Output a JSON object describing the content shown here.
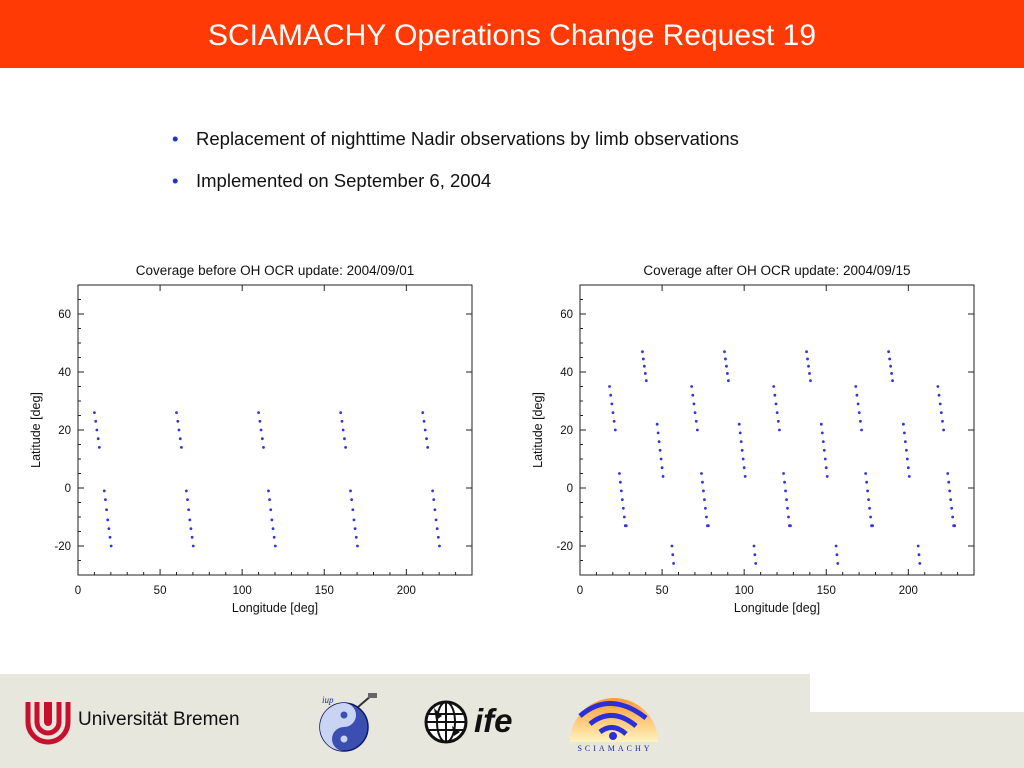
{
  "header": {
    "title": "SCIAMACHY Operations Change Request 19"
  },
  "bullets": [
    "Replacement of nighttime Nadir observations by limb observations",
    "Implemented on September 6, 2004"
  ],
  "bullet_glyph": "•",
  "footer": {
    "university": "Universität Bremen",
    "ife_logo_text": "ife",
    "sciamachy_logo_text": "SCIAMACHY"
  },
  "colors": {
    "header_bg": "#ff3a05",
    "footer_bg": "#e7e7dd",
    "points": "#3333dd"
  },
  "chart_data": [
    {
      "type": "scatter",
      "title": "Coverage before OH OCR update: 2004/09/01",
      "xlabel": "Longitude [deg]",
      "ylabel": "Latitude [deg]",
      "xlim": [
        0,
        240
      ],
      "ylim": [
        -30,
        70
      ],
      "xticks": [
        0,
        50,
        100,
        150,
        200
      ],
      "yticks": [
        -20,
        0,
        20,
        40,
        60
      ],
      "grid": false,
      "series": [
        {
          "x": [
            10,
            10.8,
            11.5,
            12.3,
            13
          ],
          "y": [
            26,
            23,
            20,
            17,
            14
          ]
        },
        {
          "x": [
            16,
            16.7,
            17.4,
            18.1,
            18.8,
            19.5,
            20.2
          ],
          "y": [
            -1,
            -4,
            -7.5,
            -11,
            -14,
            -17,
            -20
          ]
        },
        {
          "x": [
            60,
            60.8,
            61.5,
            62.3,
            63
          ],
          "y": [
            26,
            23,
            20,
            17,
            14
          ]
        },
        {
          "x": [
            66,
            66.7,
            67.4,
            68.1,
            68.8,
            69.5,
            70.2
          ],
          "y": [
            -1,
            -4,
            -7.5,
            -11,
            -14,
            -17,
            -20
          ]
        },
        {
          "x": [
            110,
            110.8,
            111.5,
            112.3,
            113
          ],
          "y": [
            26,
            23,
            20,
            17,
            14
          ]
        },
        {
          "x": [
            116,
            116.7,
            117.4,
            118.1,
            118.8,
            119.5,
            120.2
          ],
          "y": [
            -1,
            -4,
            -7.5,
            -11,
            -14,
            -17,
            -20
          ]
        },
        {
          "x": [
            160,
            160.8,
            161.5,
            162.3,
            163
          ],
          "y": [
            26,
            23,
            20,
            17,
            14
          ]
        },
        {
          "x": [
            166,
            166.7,
            167.4,
            168.1,
            168.8,
            169.5,
            170.2
          ],
          "y": [
            -1,
            -4,
            -7.5,
            -11,
            -14,
            -17,
            -20
          ]
        },
        {
          "x": [
            210,
            210.8,
            211.5,
            212.3,
            213
          ],
          "y": [
            26,
            23,
            20,
            17,
            14
          ]
        },
        {
          "x": [
            216,
            216.7,
            217.4,
            218.1,
            218.8,
            219.5,
            220.2
          ],
          "y": [
            -1,
            -4,
            -7.5,
            -11,
            -14,
            -17,
            -20
          ]
        }
      ]
    },
    {
      "type": "scatter",
      "title": "Coverage after OH OCR update: 2004/09/15",
      "xlabel": "Longitude [deg]",
      "ylabel": "Latitude [deg]",
      "xlim": [
        0,
        240
      ],
      "ylim": [
        -30,
        70
      ],
      "xticks": [
        0,
        50,
        100,
        150,
        200
      ],
      "yticks": [
        -20,
        0,
        20,
        40,
        60
      ],
      "grid": false,
      "series": [
        {
          "x": [
            38,
            38.6,
            39.2,
            39.8,
            40.4
          ],
          "y": [
            47,
            44.5,
            42,
            39.5,
            37
          ]
        },
        {
          "x": [
            18,
            18.7,
            19.4,
            20.1,
            20.8,
            21.5
          ],
          "y": [
            35,
            32,
            29,
            26,
            23,
            20
          ]
        },
        {
          "x": [
            47,
            47.6,
            48.2,
            48.8,
            49.4,
            50,
            50.6
          ],
          "y": [
            22,
            19,
            16,
            13,
            10,
            7,
            4
          ]
        },
        {
          "x": [
            24,
            24.6,
            25.2,
            25.8,
            26.4,
            27,
            27.6,
            28.2
          ],
          "y": [
            5,
            2,
            -1,
            -4,
            -7,
            -10,
            -13,
            -13
          ]
        },
        {
          "x": [
            56,
            56.5,
            57
          ],
          "y": [
            -20,
            -23,
            -26
          ]
        },
        {
          "x": [
            88,
            88.6,
            89.2,
            89.8,
            90.4
          ],
          "y": [
            47,
            44.5,
            42,
            39.5,
            37
          ]
        },
        {
          "x": [
            68,
            68.7,
            69.4,
            70.1,
            70.8,
            71.5
          ],
          "y": [
            35,
            32,
            29,
            26,
            23,
            20
          ]
        },
        {
          "x": [
            97,
            97.6,
            98.2,
            98.8,
            99.4,
            100,
            100.6
          ],
          "y": [
            22,
            19,
            16,
            13,
            10,
            7,
            4
          ]
        },
        {
          "x": [
            74,
            74.6,
            75.2,
            75.8,
            76.4,
            77,
            77.6,
            78.2
          ],
          "y": [
            5,
            2,
            -1,
            -4,
            -7,
            -10,
            -13,
            -13
          ]
        },
        {
          "x": [
            106,
            106.5,
            107
          ],
          "y": [
            -20,
            -23,
            -26
          ]
        },
        {
          "x": [
            138,
            138.6,
            139.2,
            139.8,
            140.4
          ],
          "y": [
            47,
            44.5,
            42,
            39.5,
            37
          ]
        },
        {
          "x": [
            118,
            118.7,
            119.4,
            120.1,
            120.8,
            121.5
          ],
          "y": [
            35,
            32,
            29,
            26,
            23,
            20
          ]
        },
        {
          "x": [
            147,
            147.6,
            148.2,
            148.8,
            149.4,
            150,
            150.6
          ],
          "y": [
            22,
            19,
            16,
            13,
            10,
            7,
            4
          ]
        },
        {
          "x": [
            124,
            124.6,
            125.2,
            125.8,
            126.4,
            127,
            127.6,
            128.2
          ],
          "y": [
            5,
            2,
            -1,
            -4,
            -7,
            -10,
            -13,
            -13
          ]
        },
        {
          "x": [
            156,
            156.5,
            157
          ],
          "y": [
            -20,
            -23,
            -26
          ]
        },
        {
          "x": [
            188,
            188.6,
            189.2,
            189.8,
            190.4
          ],
          "y": [
            47,
            44.5,
            42,
            39.5,
            37
          ]
        },
        {
          "x": [
            168,
            168.7,
            169.4,
            170.1,
            170.8,
            171.5
          ],
          "y": [
            35,
            32,
            29,
            26,
            23,
            20
          ]
        },
        {
          "x": [
            197,
            197.6,
            198.2,
            198.8,
            199.4,
            200,
            200.6
          ],
          "y": [
            22,
            19,
            16,
            13,
            10,
            7,
            4
          ]
        },
        {
          "x": [
            174,
            174.6,
            175.2,
            175.8,
            176.4,
            177,
            177.6,
            178.2
          ],
          "y": [
            5,
            2,
            -1,
            -4,
            -7,
            -10,
            -13,
            -13
          ]
        },
        {
          "x": [
            206,
            206.5,
            207
          ],
          "y": [
            -20,
            -23,
            -26
          ]
        },
        {
          "x": [
            218,
            218.7,
            219.4,
            220.1,
            220.8,
            221.5
          ],
          "y": [
            35,
            32,
            29,
            26,
            23,
            20
          ]
        },
        {
          "x": [
            224,
            224.6,
            225.2,
            225.8,
            226.4,
            227,
            227.6,
            228.2
          ],
          "y": [
            5,
            2,
            -1,
            -4,
            -7,
            -10,
            -13,
            -13
          ]
        }
      ]
    }
  ]
}
